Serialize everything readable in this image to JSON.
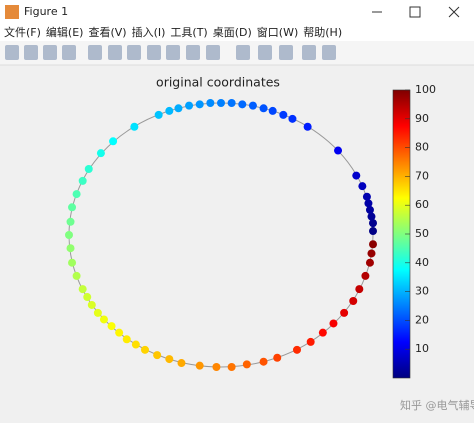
{
  "window": {
    "title": "Figure 1",
    "menu": [
      "文件(F)",
      "编辑(E)",
      "查看(V)",
      "插入(I)",
      "工具(T)",
      "桌面(D)",
      "窗口(W)",
      "帮助(H)"
    ]
  },
  "watermark": "知乎 @电气辅导帮",
  "chart_data": {
    "type": "scatter",
    "title": "original coordinates",
    "x": [
      1.0,
      1.0,
      0.99,
      0.98,
      0.97,
      0.96,
      0.93,
      0.89,
      0.77,
      0.57,
      0.47,
      0.41,
      0.34,
      0.28,
      0.21,
      0.14,
      0.07,
      0.0,
      -0.07,
      -0.14,
      -0.21,
      -0.28,
      -0.34,
      -0.41,
      -0.57,
      -0.71,
      -0.79,
      -0.87,
      -0.91,
      -0.95,
      -0.98,
      -0.99,
      -1.0,
      -0.99,
      -0.98,
      -0.95,
      -0.91,
      -0.88,
      -0.85,
      -0.81,
      -0.77,
      -0.72,
      -0.67,
      -0.62,
      -0.56,
      -0.5,
      -0.42,
      -0.34,
      -0.26,
      -0.14,
      -0.03,
      0.07,
      0.17,
      0.28,
      0.37,
      0.5,
      0.59,
      0.67,
      0.74,
      0.81,
      0.87,
      0.91,
      0.95,
      0.98,
      0.99,
      1.0
    ],
    "y": [
      0.03,
      0.09,
      0.14,
      0.19,
      0.24,
      0.29,
      0.37,
      0.45,
      0.64,
      0.82,
      0.88,
      0.91,
      0.94,
      0.96,
      0.98,
      0.99,
      1.0,
      1.0,
      1.0,
      0.99,
      0.98,
      0.96,
      0.94,
      0.91,
      0.82,
      0.71,
      0.62,
      0.5,
      0.41,
      0.31,
      0.21,
      0.1,
      0.0,
      -0.1,
      -0.21,
      -0.31,
      -0.41,
      -0.47,
      -0.53,
      -0.59,
      -0.64,
      -0.69,
      -0.74,
      -0.79,
      -0.83,
      -0.87,
      -0.91,
      -0.94,
      -0.97,
      -0.99,
      -1.0,
      -1.0,
      -0.98,
      -0.96,
      -0.93,
      -0.87,
      -0.81,
      -0.74,
      -0.67,
      -0.59,
      -0.5,
      -0.41,
      -0.31,
      -0.21,
      -0.14,
      -0.07
    ],
    "values": [
      0.6,
      1.4,
      2.2,
      3.1,
      3.9,
      4.7,
      6.1,
      7.5,
      11.1,
      15.3,
      17.2,
      18.3,
      19.4,
      20.6,
      21.7,
      22.8,
      23.9,
      25.0,
      26.1,
      27.2,
      28.3,
      29.4,
      30.6,
      31.7,
      34.7,
      37.5,
      39.4,
      41.7,
      43.3,
      45.0,
      46.7,
      48.3,
      50.0,
      51.7,
      53.3,
      55.0,
      56.7,
      57.8,
      58.9,
      60.0,
      61.1,
      62.2,
      63.3,
      64.4,
      65.6,
      66.7,
      68.1,
      69.4,
      70.8,
      72.8,
      74.4,
      76.1,
      77.8,
      79.4,
      81.1,
      83.3,
      85.0,
      86.7,
      88.3,
      90.0,
      91.7,
      93.3,
      95.0,
      96.7,
      97.8,
      98.9
    ],
    "xlim": [
      -1,
      1
    ],
    "ylim": [
      -1,
      1
    ],
    "colormap": "jet",
    "clim": [
      0,
      100
    ],
    "cticks": [
      10,
      20,
      30,
      40,
      50,
      60,
      70,
      80,
      90,
      100
    ]
  }
}
